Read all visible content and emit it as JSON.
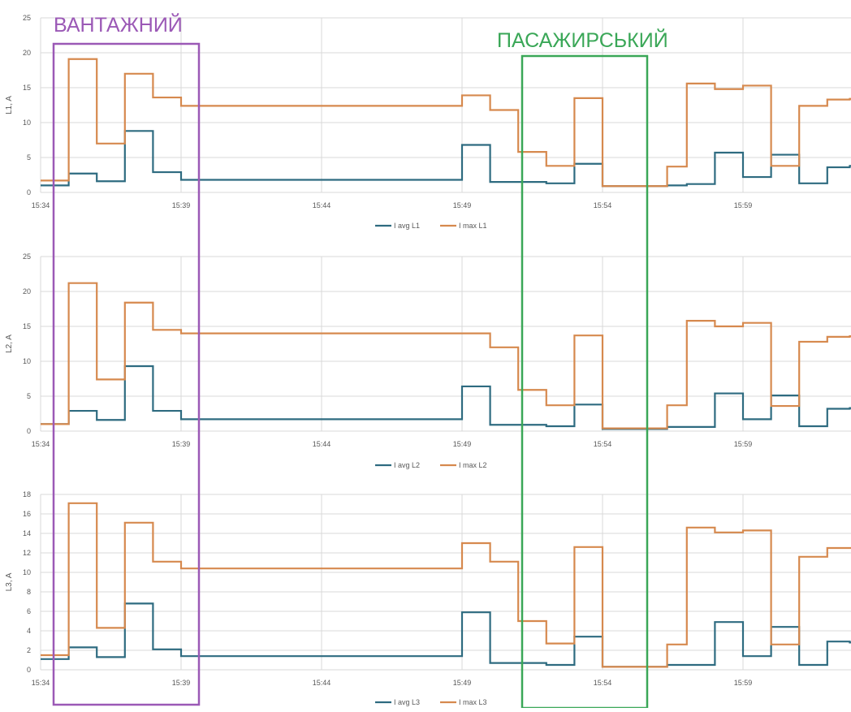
{
  "colors": {
    "avg": "#2e6b80",
    "max": "#d6894e",
    "cargo": "#9b59b6",
    "passenger": "#3aa757",
    "grid": "#d9d9d9",
    "text": "#595959"
  },
  "annotations": [
    {
      "label": "ВАНТАЖНИЙ",
      "color": "#9b59b6",
      "x_from": 15.34,
      "x_to": 15.4
    },
    {
      "label": "ПАСАЖИРСЬКИЙ",
      "color": "#3aa757",
      "x_from": 15.52,
      "x_to": 15.565
    }
  ],
  "chart_data": [
    {
      "type": "line",
      "step": true,
      "ylabel": "L1, A",
      "ylim": [
        0,
        25
      ],
      "yticks": [
        0,
        5,
        10,
        15,
        20,
        25
      ],
      "xlabel": "",
      "xticks": [
        "15:34",
        "15:39",
        "15:44",
        "15:49",
        "15:54",
        "15:59"
      ],
      "legend": "bottom",
      "grid": true,
      "x": [
        0,
        1,
        2,
        3,
        4,
        5,
        15,
        16,
        17,
        18,
        19,
        20,
        21,
        22,
        22.3,
        23,
        24,
        25,
        26,
        27,
        28,
        28.8
      ],
      "series": [
        {
          "name": "I avg L1",
          "values": [
            1.0,
            2.7,
            1.6,
            8.8,
            2.9,
            1.8,
            6.8,
            1.5,
            1.5,
            1.3,
            4.1,
            0.9,
            0.9,
            0.9,
            1.0,
            1.2,
            5.7,
            2.2,
            5.4,
            1.3,
            3.6,
            3.8
          ]
        },
        {
          "name": "I max L1",
          "values": [
            1.7,
            19.1,
            7.0,
            17.0,
            13.6,
            12.4,
            13.9,
            11.8,
            5.8,
            3.8,
            13.5,
            0.9,
            0.9,
            0.9,
            3.7,
            15.6,
            14.8,
            15.3,
            3.8,
            12.4,
            13.3,
            13.4
          ]
        }
      ]
    },
    {
      "type": "line",
      "step": true,
      "ylabel": "L2, A",
      "ylim": [
        0,
        25
      ],
      "yticks": [
        0,
        5,
        10,
        15,
        20,
        25
      ],
      "xlabel": "",
      "xticks": [
        "15:34",
        "15:39",
        "15:44",
        "15:49",
        "15:54",
        "15:59"
      ],
      "legend": "bottom",
      "grid": true,
      "x": [
        0,
        1,
        2,
        3,
        4,
        5,
        15,
        16,
        17,
        18,
        19,
        20,
        21,
        22,
        22.3,
        23,
        24,
        25,
        26,
        27,
        28,
        28.8
      ],
      "series": [
        {
          "name": "I avg L2",
          "values": [
            1.0,
            2.9,
            1.6,
            9.3,
            2.9,
            1.7,
            6.4,
            0.9,
            0.9,
            0.7,
            3.8,
            0.3,
            0.3,
            0.3,
            0.6,
            0.6,
            5.4,
            1.7,
            5.1,
            0.7,
            3.2,
            3.3
          ]
        },
        {
          "name": "I max L2",
          "values": [
            1.0,
            21.2,
            7.4,
            18.4,
            14.5,
            14.0,
            14.0,
            12.0,
            5.9,
            3.7,
            13.7,
            0.4,
            0.4,
            0.4,
            3.7,
            15.8,
            15.0,
            15.5,
            3.6,
            12.8,
            13.5,
            13.6
          ]
        }
      ]
    },
    {
      "type": "line",
      "step": true,
      "ylabel": "L3, A",
      "ylim": [
        0,
        18
      ],
      "yticks": [
        0,
        2,
        4,
        6,
        8,
        10,
        12,
        14,
        16,
        18
      ],
      "xlabel": "",
      "xticks": [
        "15:34",
        "15:39",
        "15:44",
        "15:49",
        "15:54",
        "15:59"
      ],
      "legend": "bottom",
      "grid": true,
      "x": [
        0,
        1,
        2,
        3,
        4,
        5,
        15,
        16,
        17,
        18,
        19,
        20,
        21,
        22,
        22.3,
        23,
        24,
        25,
        26,
        27,
        28,
        28.8
      ],
      "series": [
        {
          "name": "I avg L3",
          "values": [
            1.1,
            2.3,
            1.3,
            6.8,
            2.1,
            1.4,
            5.9,
            0.7,
            0.7,
            0.5,
            3.4,
            0.3,
            0.3,
            0.3,
            0.5,
            0.5,
            4.9,
            1.4,
            4.4,
            0.5,
            2.9,
            2.8
          ]
        },
        {
          "name": "I max L3",
          "values": [
            1.5,
            17.1,
            4.3,
            15.1,
            11.1,
            10.4,
            13.0,
            11.1,
            5.0,
            2.7,
            12.6,
            0.3,
            0.3,
            0.3,
            2.6,
            14.6,
            14.1,
            14.3,
            2.6,
            11.6,
            12.5,
            12.5
          ]
        }
      ]
    }
  ]
}
